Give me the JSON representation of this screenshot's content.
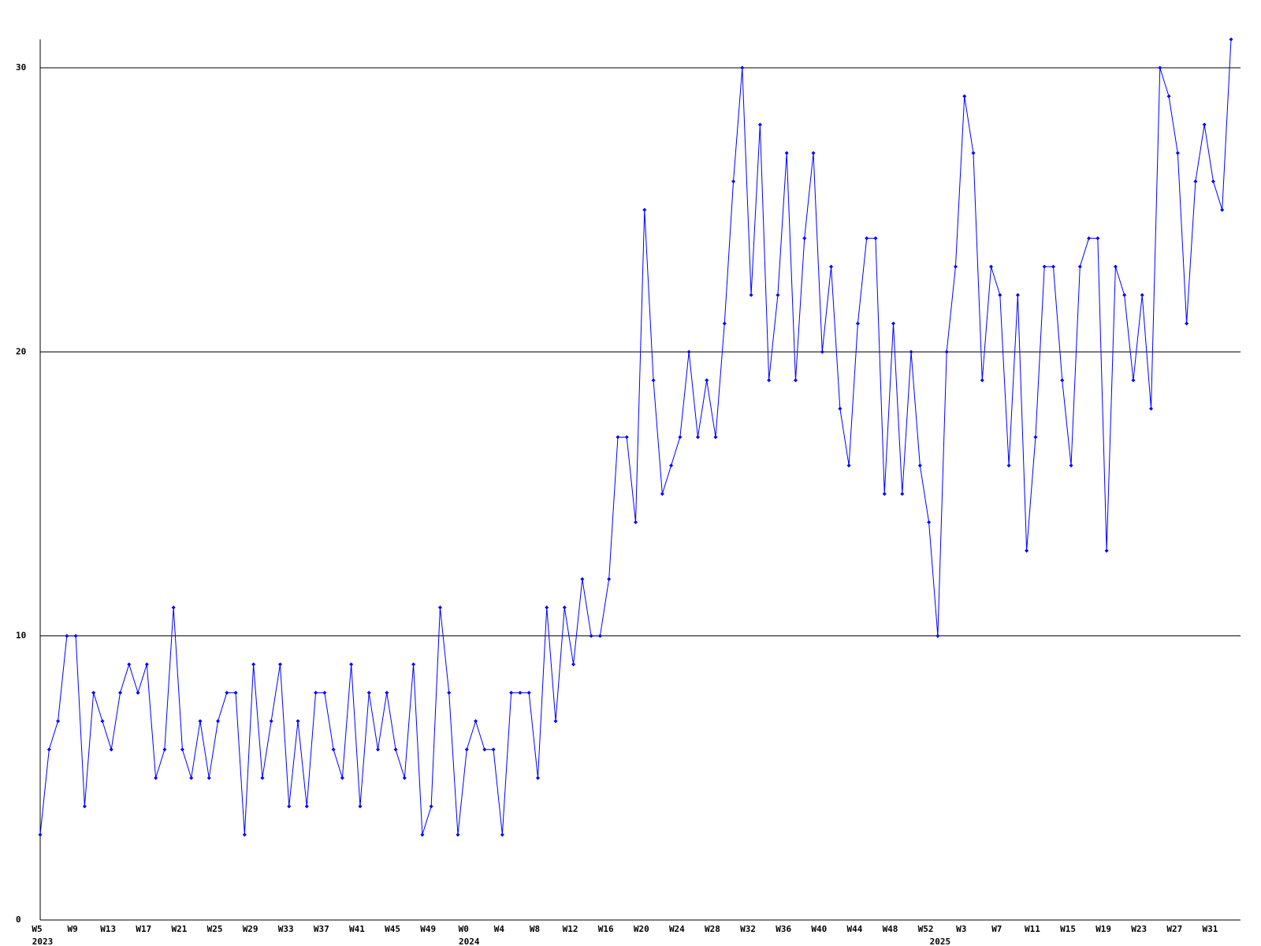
{
  "chart_data": {
    "type": "line",
    "categories": [
      "W5",
      null,
      null,
      null,
      "W9",
      null,
      null,
      null,
      "W13",
      null,
      null,
      null,
      "W17",
      null,
      null,
      null,
      "W21",
      null,
      null,
      null,
      "W25",
      null,
      null,
      null,
      "W29",
      null,
      null,
      null,
      "W33",
      null,
      null,
      null,
      "W37",
      null,
      null,
      null,
      "W41",
      null,
      null,
      null,
      "W45",
      null,
      null,
      null,
      "W49",
      null,
      null,
      null,
      "W0",
      null,
      null,
      null,
      "W4",
      null,
      null,
      null,
      "W8",
      null,
      null,
      null,
      "W12",
      null,
      null,
      null,
      "W16",
      null,
      null,
      null,
      "W20",
      null,
      null,
      null,
      "W24",
      null,
      null,
      null,
      "W28",
      null,
      null,
      null,
      "W32",
      null,
      null,
      null,
      "W36",
      null,
      null,
      null,
      "W40",
      null,
      null,
      null,
      "W44",
      null,
      null,
      null,
      "W48",
      null,
      null,
      null,
      "W52",
      null,
      null,
      null,
      "W3",
      null,
      null,
      null,
      "W7",
      null,
      null,
      null,
      "W11",
      null,
      null,
      null,
      "W15",
      null,
      null,
      null,
      "W19",
      null,
      null,
      null,
      "W23",
      null,
      null,
      null,
      "W27",
      null,
      null,
      null,
      "W31",
      null,
      null
    ],
    "year_labels": [
      "2023",
      null,
      null,
      null,
      null,
      null,
      null,
      null,
      null,
      null,
      null,
      null,
      null,
      null,
      null,
      null,
      null,
      null,
      null,
      null,
      null,
      null,
      null,
      null,
      null,
      null,
      null,
      null,
      null,
      null,
      null,
      null,
      null,
      null,
      null,
      null,
      null,
      null,
      null,
      null,
      null,
      null,
      null,
      null,
      null,
      null,
      null,
      null,
      "2024",
      null,
      null,
      null,
      null,
      null,
      null,
      null,
      null,
      null,
      null,
      null,
      null,
      null,
      null,
      null,
      null,
      null,
      null,
      null,
      null,
      null,
      null,
      null,
      null,
      null,
      null,
      null,
      null,
      null,
      null,
      null,
      null,
      null,
      null,
      null,
      null,
      null,
      null,
      null,
      null,
      null,
      null,
      null,
      null,
      null,
      null,
      null,
      null,
      null,
      null,
      null,
      null,
      "2025",
      null,
      null,
      null,
      null,
      null,
      null,
      null,
      null,
      null,
      null,
      null,
      null,
      null,
      null,
      null,
      null,
      null,
      null,
      null,
      null,
      null,
      null,
      null,
      null,
      null,
      null,
      null,
      null,
      null,
      null,
      null,
      null
    ],
    "series": [
      {
        "color": "#0000ff",
        "values": [
          3,
          6,
          7,
          10,
          10,
          4,
          8,
          7,
          6,
          8,
          9,
          8,
          9,
          5,
          6,
          11,
          6,
          5,
          7,
          5,
          7,
          8,
          8,
          3,
          9,
          5,
          7,
          9,
          4,
          7,
          4,
          8,
          8,
          6,
          5,
          9,
          4,
          8,
          6,
          8,
          6,
          5,
          9,
          3,
          4,
          11,
          8,
          3,
          6,
          7,
          6,
          6,
          3,
          8,
          8,
          8,
          5,
          11,
          7,
          11,
          9,
          12,
          10,
          10,
          12,
          17,
          17,
          14,
          25,
          19,
          15,
          16,
          17,
          20,
          17,
          19,
          17,
          21,
          26,
          30,
          22,
          28,
          19,
          22,
          27,
          19,
          24,
          27,
          20,
          23,
          18,
          16,
          21,
          24,
          24,
          15,
          21,
          15,
          20,
          16,
          14,
          10,
          20,
          23,
          29,
          27,
          19,
          23,
          22,
          16,
          22,
          13,
          17,
          23,
          23,
          19,
          16,
          23,
          24,
          24,
          13,
          23,
          22,
          19,
          22,
          18,
          30,
          29,
          27,
          21,
          26,
          28,
          26,
          25,
          31
        ]
      }
    ],
    "ylim": [
      0,
      31
    ],
    "yticks": [
      0,
      10,
      20,
      30
    ],
    "grid": true
  }
}
